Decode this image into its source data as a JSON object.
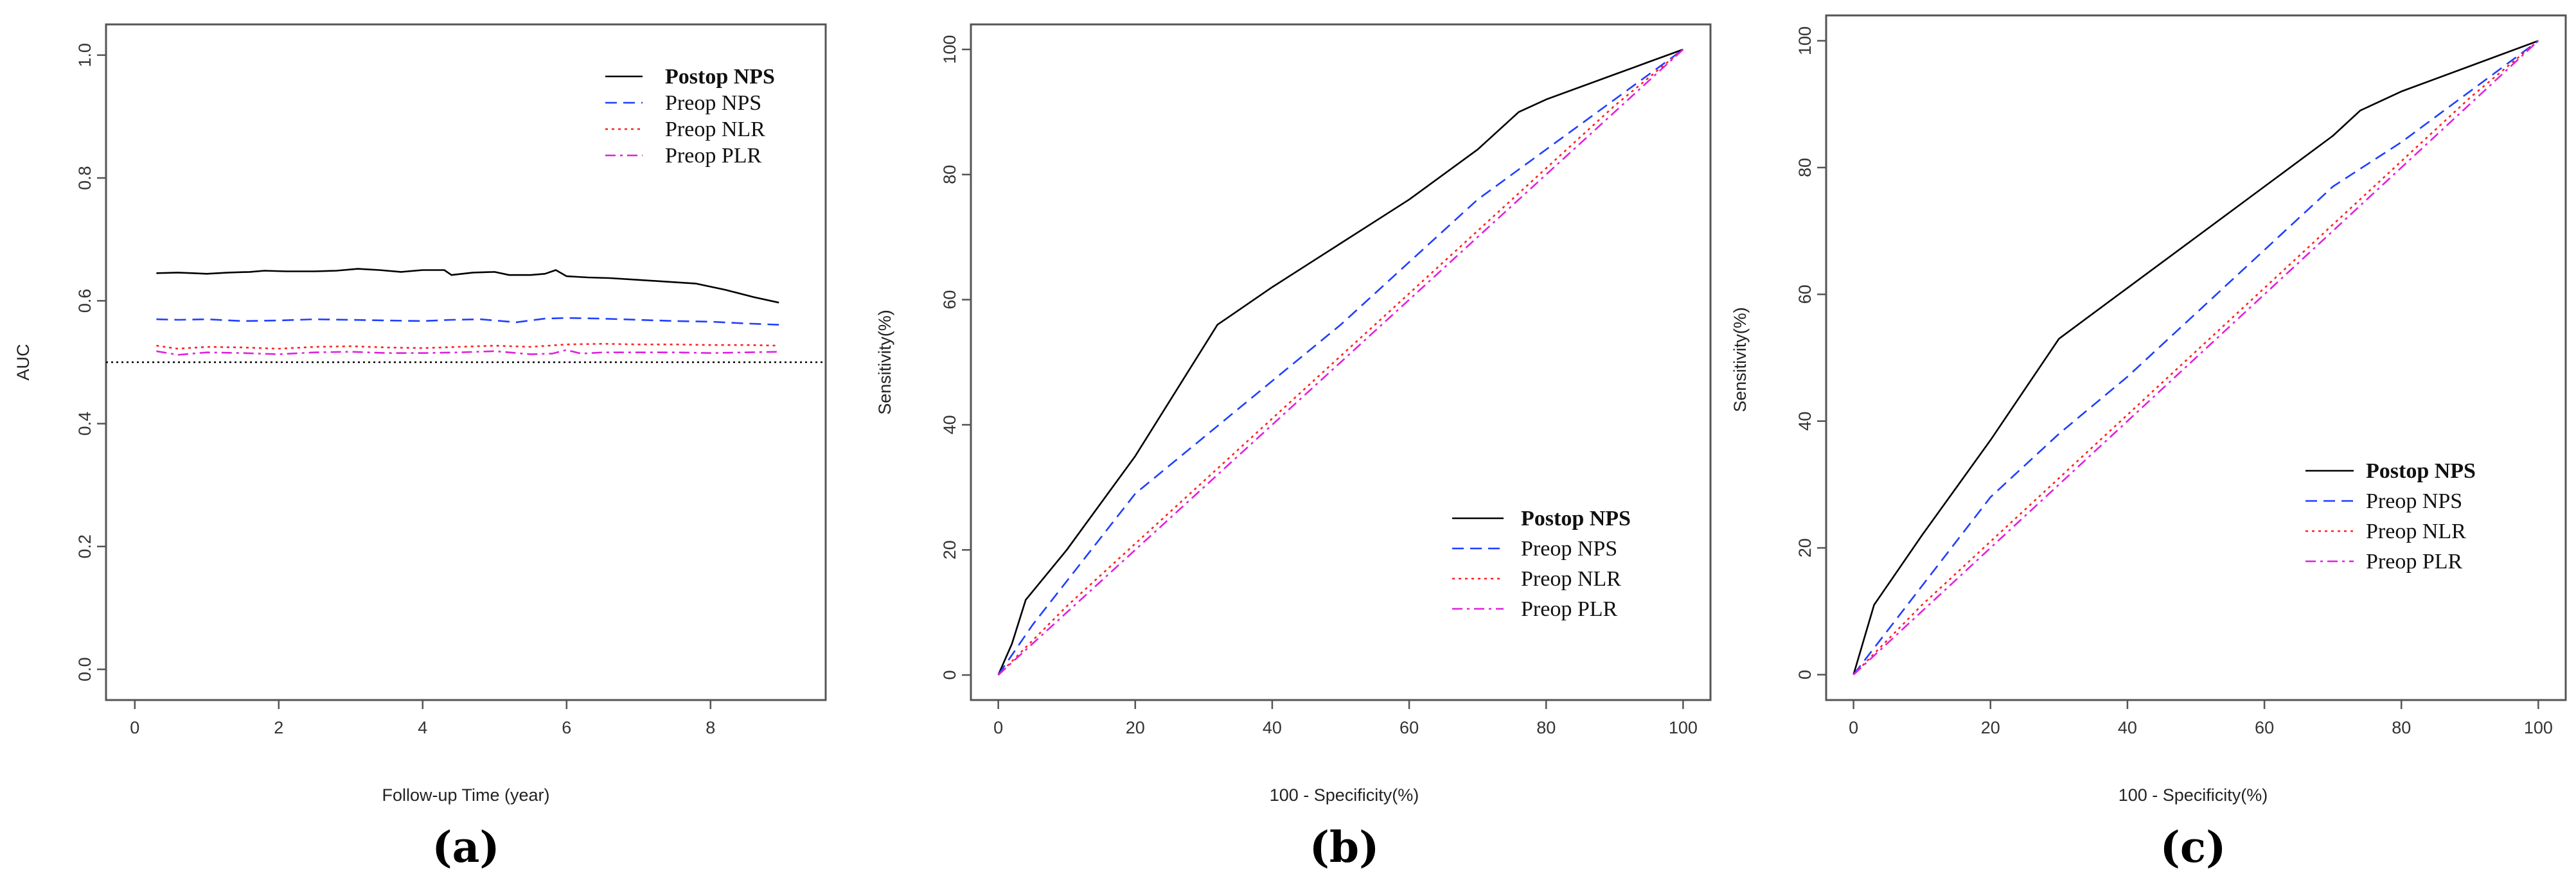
{
  "colors": {
    "postop_nps": "#000000",
    "preop_nps": "#1f3fff",
    "preop_nlr": "#ff2020",
    "preop_plr": "#e020e0",
    "reference": "#000000",
    "frame": "#555555"
  },
  "chart_data": [
    {
      "type": "line",
      "panel_label": "(a)",
      "title": "",
      "xlabel": "Follow-up Time (year)",
      "ylabel": "AUC",
      "xlim": [
        -0.4,
        9.6
      ],
      "ylim": [
        -0.05,
        1.05
      ],
      "xticks": [
        0,
        2,
        4,
        6,
        8
      ],
      "yticks": [
        0.0,
        0.2,
        0.4,
        0.6,
        0.8,
        1.0
      ],
      "ytick_labels": [
        "0.0",
        "0.2",
        "0.4",
        "0.6",
        "0.8",
        "1.0"
      ],
      "reference_line": {
        "y": 0.5,
        "style": "dotted"
      },
      "legend_position": "top-right",
      "grid": false,
      "series": [
        {
          "name": "Postop NPS",
          "style": "solid",
          "color_key": "postop_nps",
          "bold": true,
          "x": [
            0.3,
            0.6,
            0.8,
            1.0,
            1.3,
            1.6,
            1.8,
            2.1,
            2.5,
            2.8,
            3.1,
            3.4,
            3.7,
            4.0,
            4.3,
            4.4,
            4.7,
            5.0,
            5.2,
            5.5,
            5.7,
            5.85,
            6.0,
            6.3,
            6.6,
            7.0,
            7.4,
            7.8,
            8.2,
            8.6,
            8.95
          ],
          "y": [
            0.645,
            0.646,
            0.645,
            0.644,
            0.646,
            0.647,
            0.649,
            0.648,
            0.648,
            0.649,
            0.652,
            0.65,
            0.647,
            0.65,
            0.65,
            0.642,
            0.646,
            0.647,
            0.642,
            0.642,
            0.644,
            0.65,
            0.64,
            0.638,
            0.637,
            0.634,
            0.631,
            0.628,
            0.618,
            0.606,
            0.597
          ]
        },
        {
          "name": "Preop NPS",
          "style": "dashed",
          "color_key": "preop_nps",
          "bold": false,
          "x": [
            0.3,
            0.6,
            1.0,
            1.5,
            2.0,
            2.5,
            3.0,
            3.5,
            4.0,
            4.4,
            4.8,
            5.3,
            5.7,
            6.0,
            6.5,
            7.0,
            7.5,
            8.0,
            8.5,
            8.95
          ],
          "y": [
            0.57,
            0.569,
            0.57,
            0.567,
            0.568,
            0.57,
            0.569,
            0.568,
            0.567,
            0.569,
            0.57,
            0.565,
            0.571,
            0.572,
            0.571,
            0.569,
            0.567,
            0.566,
            0.563,
            0.561
          ]
        },
        {
          "name": "Preop NLR",
          "style": "dotted",
          "color_key": "preop_nlr",
          "bold": false,
          "x": [
            0.3,
            0.6,
            1.0,
            1.5,
            2.0,
            2.5,
            3.0,
            3.5,
            4.0,
            4.5,
            5.0,
            5.5,
            6.0,
            6.5,
            7.0,
            7.5,
            8.0,
            8.5,
            8.95
          ],
          "y": [
            0.527,
            0.522,
            0.525,
            0.524,
            0.522,
            0.525,
            0.526,
            0.524,
            0.523,
            0.525,
            0.527,
            0.525,
            0.529,
            0.53,
            0.529,
            0.529,
            0.528,
            0.528,
            0.527
          ]
        },
        {
          "name": "Preop PLR",
          "style": "dashdot",
          "color_key": "preop_plr",
          "bold": false,
          "x": [
            0.3,
            0.6,
            1.0,
            1.5,
            2.0,
            2.5,
            3.0,
            3.5,
            4.0,
            4.5,
            5.0,
            5.5,
            5.8,
            6.0,
            6.2,
            6.5,
            7.0,
            7.5,
            8.0,
            8.5,
            8.95
          ],
          "y": [
            0.518,
            0.512,
            0.516,
            0.515,
            0.513,
            0.516,
            0.517,
            0.515,
            0.515,
            0.516,
            0.518,
            0.513,
            0.514,
            0.52,
            0.514,
            0.516,
            0.516,
            0.516,
            0.515,
            0.516,
            0.517
          ]
        }
      ]
    },
    {
      "type": "line",
      "panel_label": "(b)",
      "title": "",
      "xlabel": "100 - Specificity(%)",
      "ylabel": "Sensitivity(%)",
      "xlim": [
        -4,
        104
      ],
      "ylim": [
        -4,
        104
      ],
      "xticks": [
        0,
        20,
        40,
        60,
        80,
        100
      ],
      "yticks": [
        0,
        20,
        40,
        60,
        80,
        100
      ],
      "ytick_labels": [
        "0",
        "20",
        "40",
        "60",
        "80",
        "100"
      ],
      "legend_position": "bottom-right",
      "grid": false,
      "series": [
        {
          "name": "Postop NPS",
          "style": "solid",
          "color_key": "postop_nps",
          "bold": true,
          "x": [
            0,
            2,
            4,
            10,
            20,
            32,
            40,
            50,
            60,
            70,
            76,
            80,
            85,
            90,
            95,
            100
          ],
          "y": [
            0,
            5,
            12,
            20,
            35,
            56,
            62,
            69,
            76,
            84,
            90,
            92,
            94,
            96,
            98,
            100
          ]
        },
        {
          "name": "Preop NPS",
          "style": "dashed",
          "color_key": "preop_nps",
          "bold": false,
          "x": [
            0,
            5,
            10,
            20,
            30,
            40,
            50,
            60,
            70,
            80,
            90,
            100
          ],
          "y": [
            0,
            8,
            15,
            29,
            38,
            47,
            56,
            66,
            76,
            84,
            92,
            100
          ]
        },
        {
          "name": "Preop NLR",
          "style": "dotted",
          "color_key": "preop_nlr",
          "bold": false,
          "x": [
            0,
            10,
            20,
            30,
            40,
            50,
            60,
            70,
            80,
            90,
            100
          ],
          "y": [
            0,
            11,
            21,
            31,
            41,
            51,
            61,
            71,
            81,
            91,
            100
          ]
        },
        {
          "name": "Preop PLR",
          "style": "dashdot",
          "color_key": "preop_plr",
          "bold": false,
          "x": [
            0,
            10,
            20,
            30,
            40,
            50,
            60,
            70,
            80,
            90,
            100
          ],
          "y": [
            0,
            10,
            20,
            30,
            40,
            50,
            60,
            70,
            80,
            90,
            100
          ]
        }
      ]
    },
    {
      "type": "line",
      "panel_label": "(c)",
      "title": "",
      "xlabel": "100 - Specificity(%)",
      "ylabel": "Sensitivity(%)",
      "xlim": [
        -4,
        104
      ],
      "ylim": [
        -4,
        104
      ],
      "xticks": [
        0,
        20,
        40,
        60,
        80,
        100
      ],
      "yticks": [
        0,
        20,
        40,
        60,
        80,
        100
      ],
      "ytick_labels": [
        "0",
        "20",
        "40",
        "60",
        "80",
        "100"
      ],
      "legend_position": "bottom-right",
      "grid": false,
      "series": [
        {
          "name": "Postop NPS",
          "style": "solid",
          "color_key": "postop_nps",
          "bold": true,
          "x": [
            0,
            3,
            10,
            20,
            30,
            40,
            50,
            60,
            70,
            74,
            80,
            90,
            100
          ],
          "y": [
            0,
            11,
            22,
            37,
            53,
            61,
            69,
            77,
            85,
            89,
            92,
            96,
            100
          ]
        },
        {
          "name": "Preop NPS",
          "style": "dashed",
          "color_key": "preop_nps",
          "bold": false,
          "x": [
            0,
            5,
            10,
            20,
            30,
            40,
            50,
            60,
            70,
            80,
            90,
            100
          ],
          "y": [
            0,
            7,
            14,
            28,
            38,
            47,
            57,
            67,
            77,
            84,
            92,
            100
          ]
        },
        {
          "name": "Preop NLR",
          "style": "dotted",
          "color_key": "preop_nlr",
          "bold": false,
          "x": [
            0,
            10,
            20,
            30,
            40,
            50,
            60,
            70,
            80,
            90,
            100
          ],
          "y": [
            0,
            11,
            21,
            31,
            41,
            51,
            61,
            71,
            81,
            91,
            100
          ]
        },
        {
          "name": "Preop PLR",
          "style": "dashdot",
          "color_key": "preop_plr",
          "bold": false,
          "x": [
            0,
            10,
            20,
            30,
            40,
            50,
            60,
            70,
            80,
            90,
            100
          ],
          "y": [
            0,
            10,
            20,
            30,
            40,
            50,
            60,
            70,
            80,
            90,
            100
          ]
        }
      ]
    }
  ]
}
